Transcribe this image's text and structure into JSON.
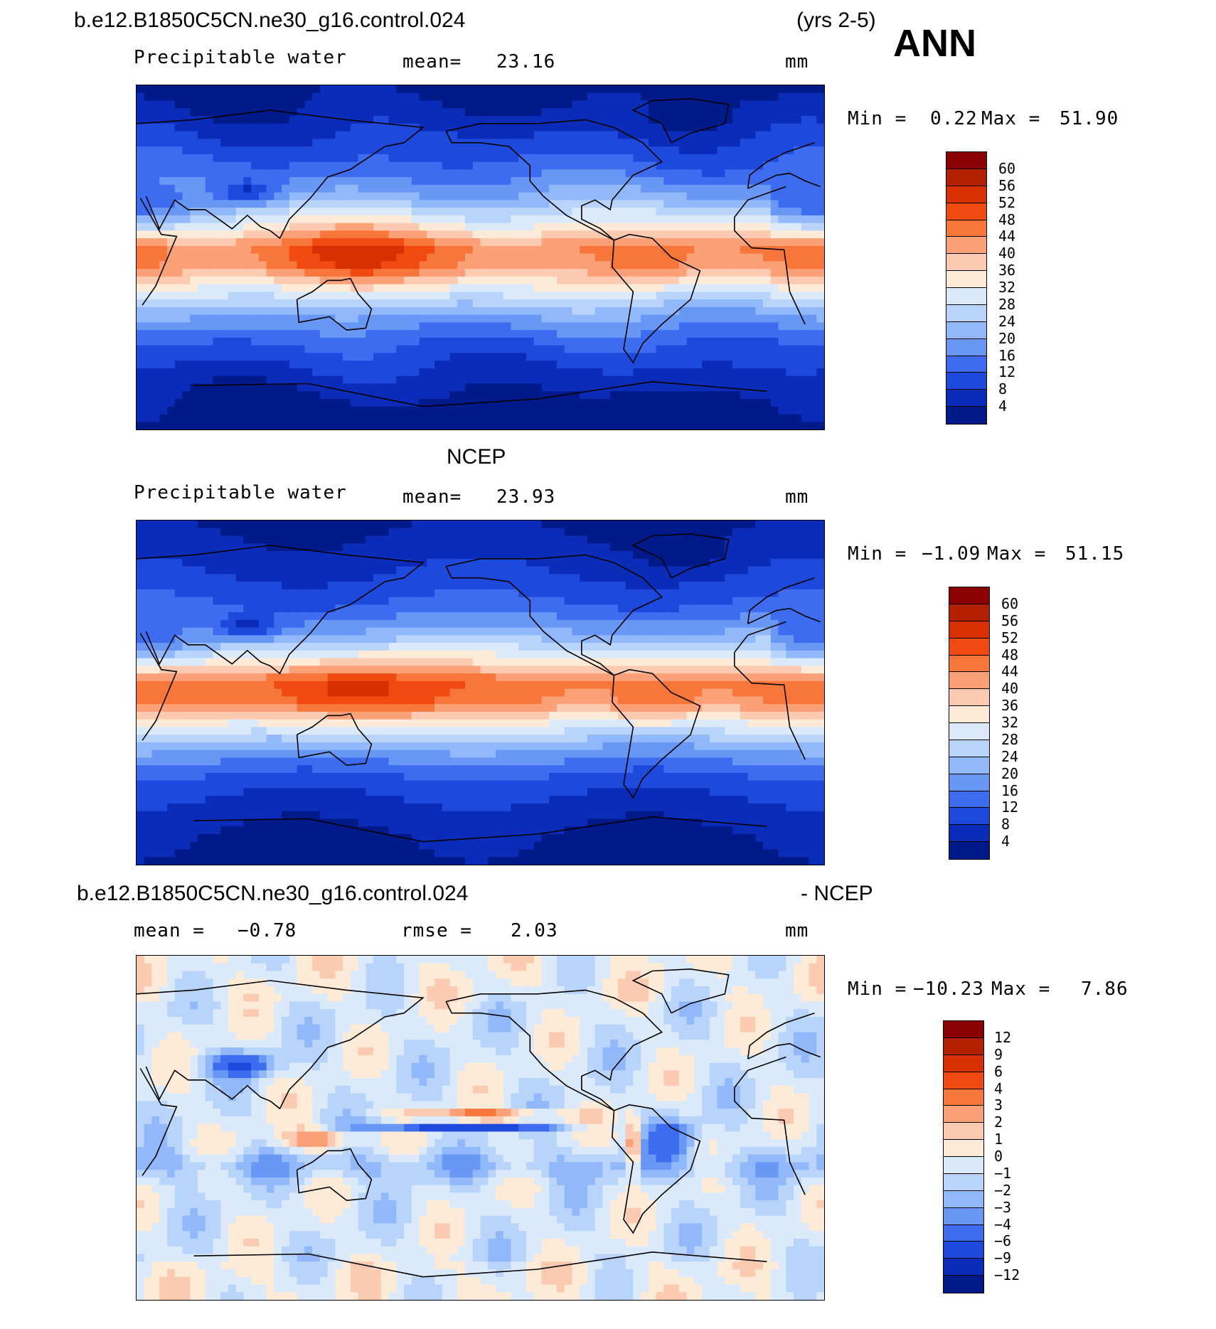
{
  "header": {
    "case_name": "b.e12.B1850C5CN.ne30_g16.control.024",
    "years": "(yrs 2-5)",
    "season": "ANN"
  },
  "panels": [
    {
      "id": "model",
      "variable": "Precipitable water",
      "stat_label": "mean=",
      "stat_value": "23.16",
      "units": "mm",
      "min_label": "Min =",
      "min_value": "0.22",
      "max_label": "Max =",
      "max_value": "51.90",
      "scale": "moisture"
    },
    {
      "id": "obs",
      "title": "NCEP",
      "variable": "Precipitable water",
      "stat_label": "mean=",
      "stat_value": "23.93",
      "units": "mm",
      "min_label": "Min =",
      "min_value": "−1.09",
      "max_label": "Max =",
      "max_value": "51.15",
      "scale": "moisture"
    },
    {
      "id": "diff",
      "title_left": "b.e12.B1850C5CN.ne30_g16.control.024",
      "title_right": "- NCEP",
      "stat_label": "mean =",
      "stat_value": "−0.78",
      "rmse_label": "rmse =",
      "rmse_value": "2.03",
      "units": "mm",
      "min_label": "Min =",
      "min_value": "−10.23",
      "max_label": "Max =",
      "max_value": "7.86",
      "scale": "difference"
    }
  ],
  "colorbars": {
    "moisture": {
      "levels": [
        "60",
        "56",
        "52",
        "48",
        "44",
        "40",
        "36",
        "32",
        "28",
        "24",
        "20",
        "16",
        "12",
        "8",
        "4"
      ],
      "colors": [
        "#8b0000",
        "#b22000",
        "#d83000",
        "#f04a10",
        "#f8763a",
        "#fca078",
        "#fccab0",
        "#fdebd8",
        "#dbeafb",
        "#b8d4fb",
        "#90b8fa",
        "#6897f6",
        "#3d6cf0",
        "#1d49dd",
        "#0b2cb8",
        "#001a8a"
      ]
    },
    "difference": {
      "levels": [
        "12",
        "9",
        "6",
        "4",
        "3",
        "2",
        "1",
        "0",
        "−1",
        "−2",
        "−3",
        "−4",
        "−6",
        "−9",
        "−12"
      ],
      "colors": [
        "#8b0000",
        "#b22000",
        "#d83000",
        "#f04a10",
        "#f8763a",
        "#fca078",
        "#fccab0",
        "#fdebd8",
        "#dbeafb",
        "#b8d4fb",
        "#90b8fa",
        "#6897f6",
        "#3d6cf0",
        "#1d49dd",
        "#0b2cb8",
        "#001a8a"
      ]
    }
  },
  "map_fields": {
    "moisture_bands": [
      {
        "lat": 90,
        "v": 2
      },
      {
        "lat": 75,
        "v": 5
      },
      {
        "lat": 60,
        "v": 9
      },
      {
        "lat": 45,
        "v": 14
      },
      {
        "lat": 30,
        "v": 22
      },
      {
        "lat": 15,
        "v": 34
      },
      {
        "lat": 5,
        "v": 44
      },
      {
        "lat": -5,
        "v": 42
      },
      {
        "lat": -15,
        "v": 32
      },
      {
        "lat": -30,
        "v": 20
      },
      {
        "lat": -45,
        "v": 12
      },
      {
        "lat": -60,
        "v": 7
      },
      {
        "lat": -75,
        "v": 3
      },
      {
        "lat": -90,
        "v": 1
      }
    ]
  }
}
